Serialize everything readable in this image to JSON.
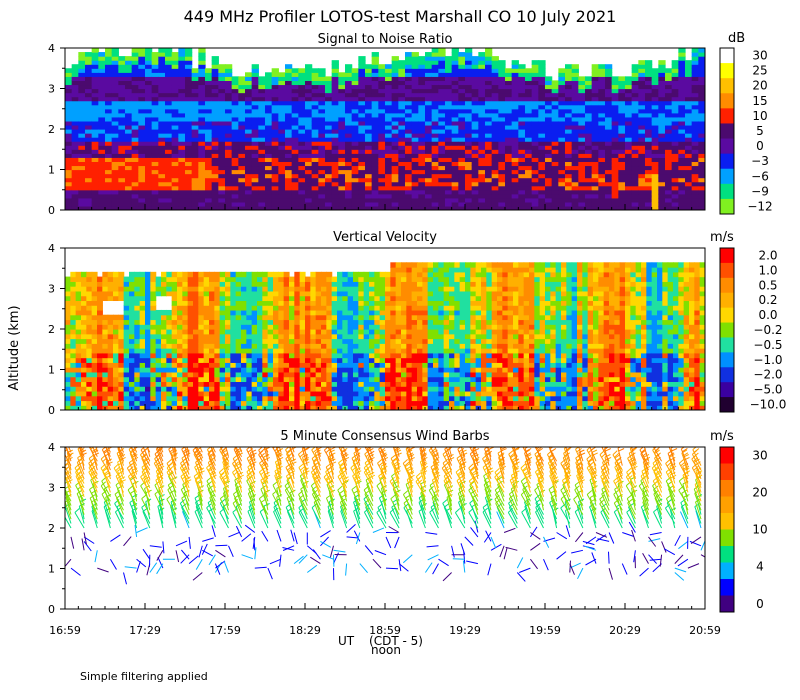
{
  "figure": {
    "title": "449 MHz Profiler LOTOS-test Marshall CO 10 July 2021",
    "ylabel": "Altitude (km)",
    "xlabel": "UT",
    "xlabel_sub": "(CDT - 5)",
    "xlabel_noon": "noon",
    "footnote": "Simple filtering applied",
    "x_ticks": [
      "16:59",
      "17:29",
      "17:59",
      "18:29",
      "18:59",
      "19:29",
      "19:59",
      "20:29",
      "20:59"
    ],
    "y_ticks": [
      "0",
      "1",
      "2",
      "3",
      "4"
    ]
  },
  "chart_data": [
    {
      "type": "heatmap",
      "title": "Signal to Noise Ratio",
      "unit": "dB",
      "xlim": [
        "16:59",
        "20:59"
      ],
      "ylim": [
        0,
        4
      ],
      "colorbar_labels": [
        "30",
        "25",
        "20",
        "15",
        "10",
        "5",
        "0",
        "−3",
        "−6",
        "−9",
        "−12"
      ],
      "colorbar_colors": [
        "#ffffff",
        "#ffff00",
        "#ffc000",
        "#ff8c00",
        "#ff2000",
        "#4b0a6e",
        "#5a0aa0",
        "#0a1ef0",
        "#00a0ff",
        "#00e080",
        "#80f020"
      ],
      "profile": [
        {
          "altitude_km": 0.25,
          "snr_db": 2
        },
        {
          "altitude_km": 1.0,
          "snr_db": 10
        },
        {
          "altitude_km": 1.5,
          "snr_db": 2
        },
        {
          "altitude_km": 2.0,
          "snr_db": -3
        },
        {
          "altitude_km": 2.5,
          "snr_db": -6
        },
        {
          "altitude_km": 3.0,
          "snr_db": 0
        },
        {
          "altitude_km": 3.5,
          "snr_db": -3
        },
        {
          "altitude_km": 3.9,
          "snr_db": -12
        }
      ]
    },
    {
      "type": "heatmap",
      "title": "Vertical Velocity",
      "unit": "m/s",
      "xlim": [
        "16:59",
        "20:59"
      ],
      "ylim": [
        0,
        4
      ],
      "colorbar_labels": [
        "2.0",
        "1.0",
        "0.5",
        "0.2",
        "0.0",
        "−0.2",
        "−0.5",
        "−1.0",
        "−2.0",
        "−5.0",
        "−10.0"
      ],
      "colorbar_colors": [
        "#ff0000",
        "#ff5000",
        "#ff8c00",
        "#ffb000",
        "#ffd800",
        "#80e000",
        "#20e0a0",
        "#0090ff",
        "#1030e0",
        "#3a00a0",
        "#200030"
      ],
      "data_top_km": 3.4
    },
    {
      "type": "scatter",
      "title": "5 Minute Consensus Wind Barbs",
      "unit": "m/s",
      "xlim": [
        "16:59",
        "20:59"
      ],
      "ylim": [
        0,
        4
      ],
      "colorbar_labels": [
        "30",
        "20",
        "10",
        "4",
        "0"
      ],
      "colorbar_colors": [
        "#ff0000",
        "#ff4000",
        "#ff8000",
        "#ffa000",
        "#ffc000",
        "#80e000",
        "#00e080",
        "#00b0ff",
        "#0000ff",
        "#400080"
      ],
      "profile": [
        {
          "altitude_km": 1.0,
          "speed_ms": 3
        },
        {
          "altitude_km": 1.5,
          "speed_ms": 4
        },
        {
          "altitude_km": 2.0,
          "speed_ms": 10
        },
        {
          "altitude_km": 2.5,
          "speed_ms": 14
        },
        {
          "altitude_km": 3.0,
          "speed_ms": 18
        },
        {
          "altitude_km": 3.5,
          "speed_ms": 20
        },
        {
          "altitude_km": 4.0,
          "speed_ms": 22
        }
      ]
    }
  ]
}
